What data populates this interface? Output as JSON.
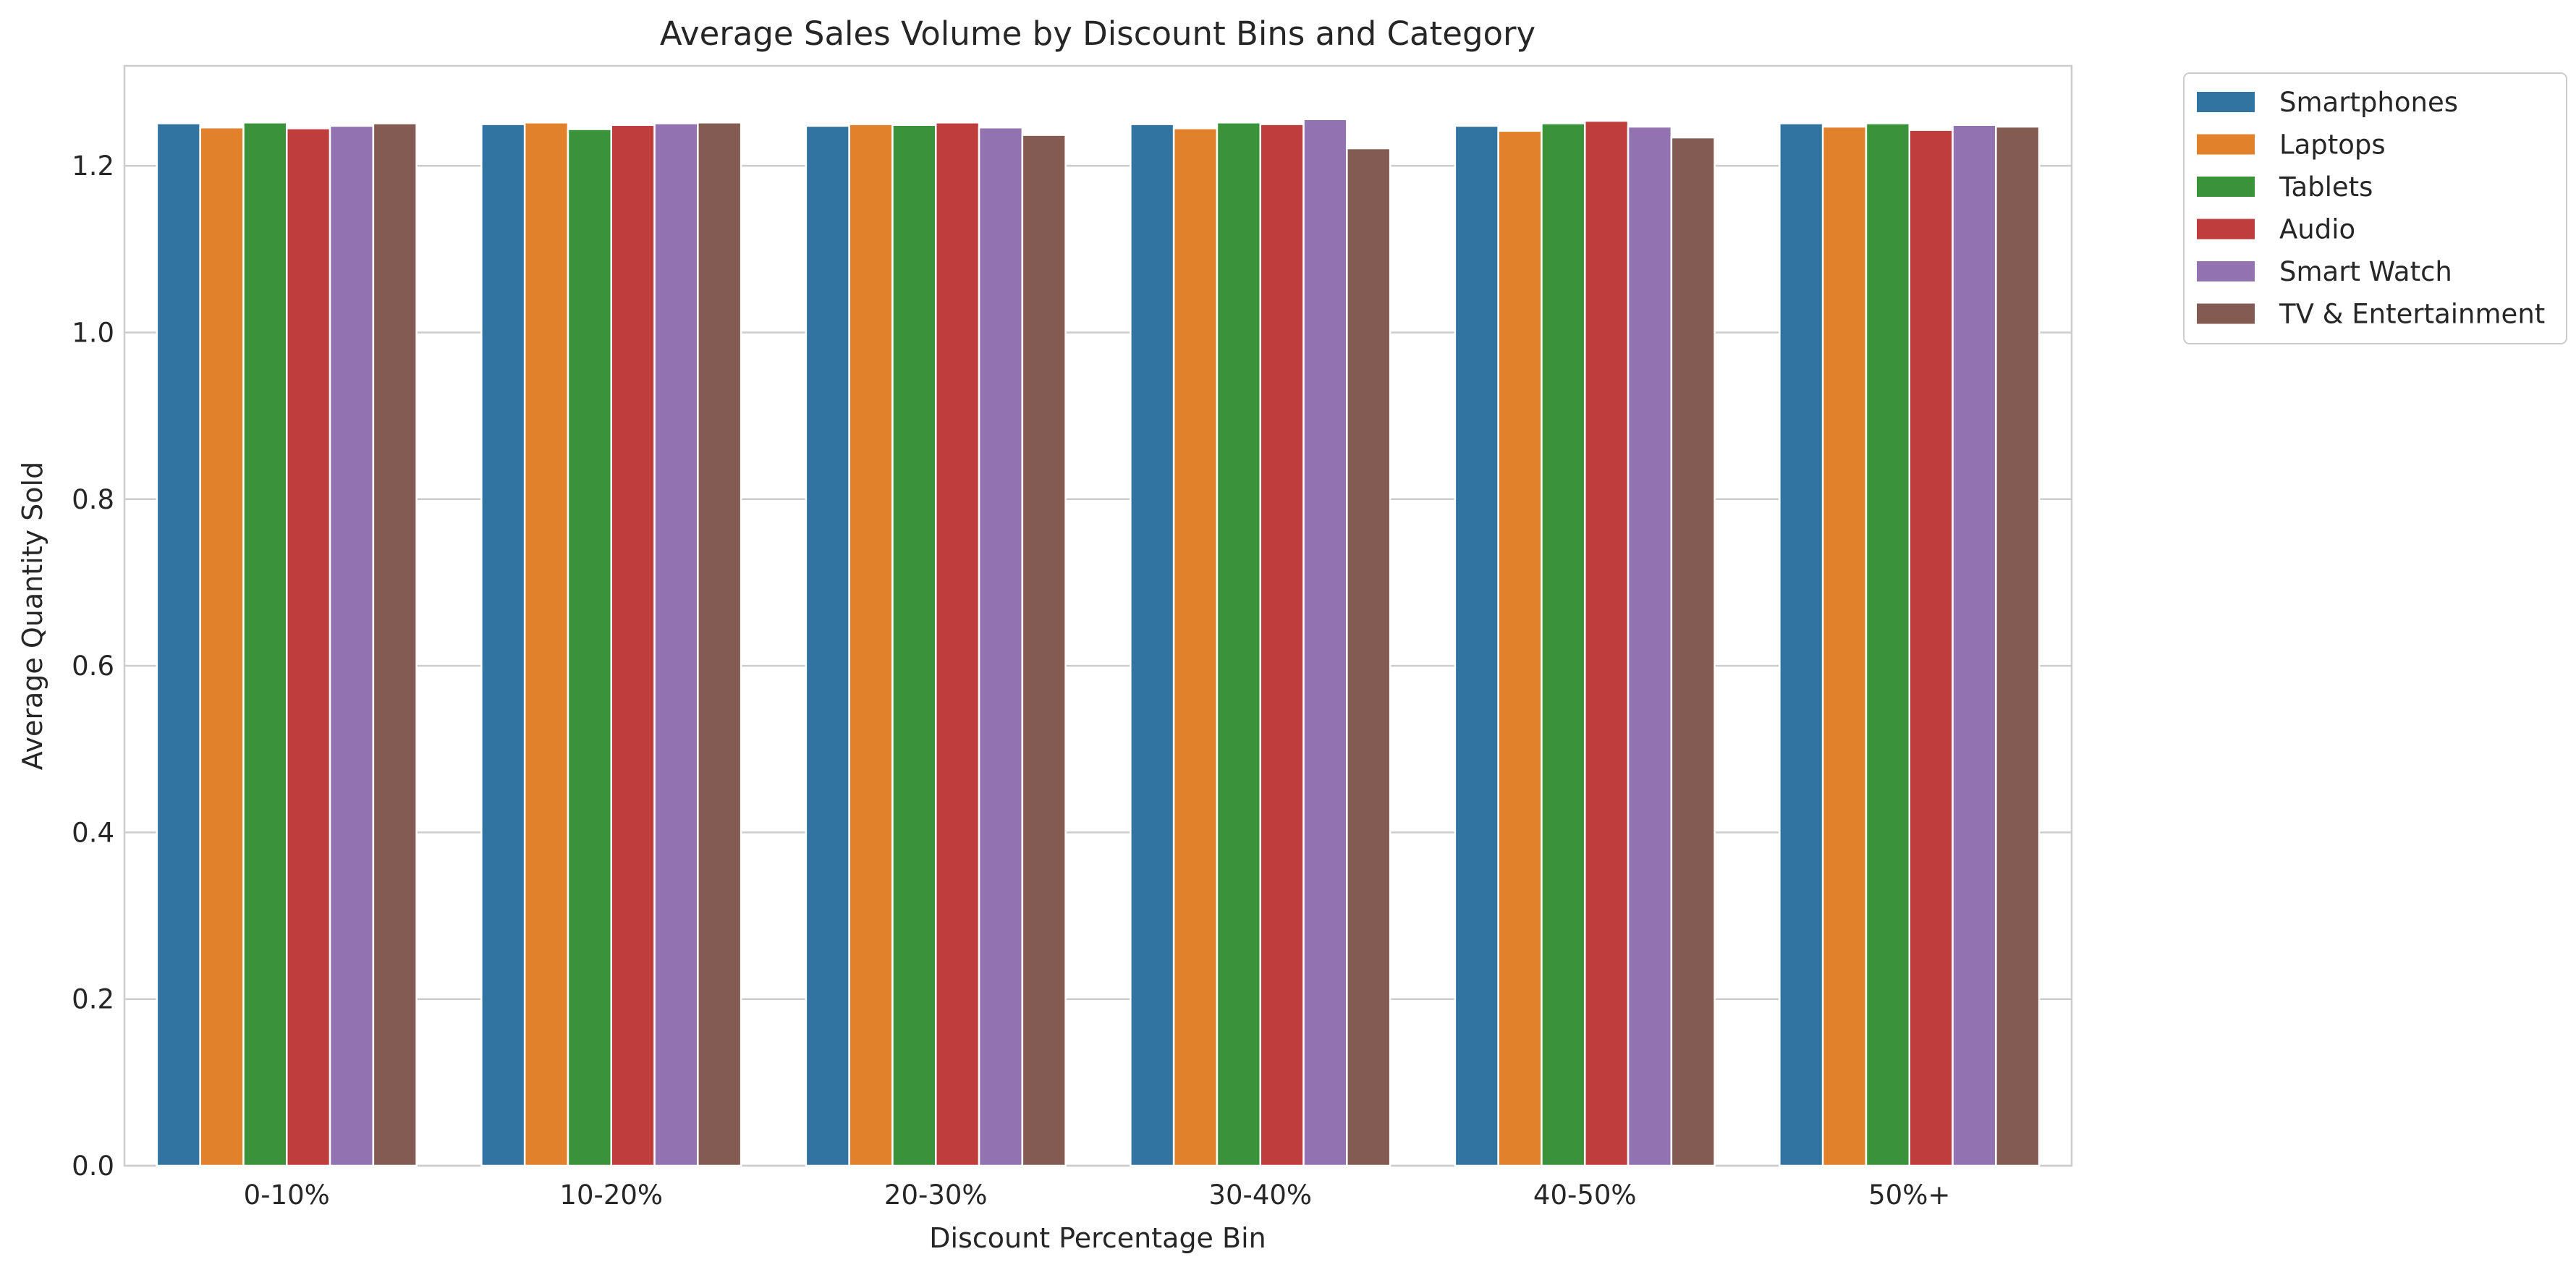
{
  "chart_data": {
    "type": "bar",
    "title": "Average Sales Volume by Discount Bins and Category",
    "xlabel": "Discount Percentage Bin",
    "ylabel": "Average Quantity Sold",
    "categories": [
      "0-10%",
      "10-20%",
      "20-30%",
      "30-40%",
      "40-50%",
      "50%+"
    ],
    "ylim": [
      0,
      1.32
    ],
    "yticks": [
      "0.0",
      "0.2",
      "0.4",
      "0.6",
      "0.8",
      "1.0",
      "1.2"
    ],
    "grid": true,
    "legend_position": "outside-top-right",
    "series": [
      {
        "name": "Smartphones",
        "color": "#3274a1",
        "values": [
          1.251,
          1.25,
          1.248,
          1.25,
          1.248,
          1.251
        ]
      },
      {
        "name": "Laptops",
        "color": "#e1812c",
        "values": [
          1.246,
          1.252,
          1.25,
          1.245,
          1.242,
          1.247
        ]
      },
      {
        "name": "Tablets",
        "color": "#3a923a",
        "values": [
          1.252,
          1.244,
          1.249,
          1.252,
          1.251,
          1.251
        ]
      },
      {
        "name": "Audio",
        "color": "#c03d3e",
        "values": [
          1.245,
          1.249,
          1.252,
          1.25,
          1.254,
          1.243
        ]
      },
      {
        "name": "Smart Watch",
        "color": "#9372b2",
        "values": [
          1.248,
          1.251,
          1.246,
          1.256,
          1.247,
          1.249
        ]
      },
      {
        "name": "TV & Entertainment",
        "color": "#845b53",
        "values": [
          1.251,
          1.252,
          1.237,
          1.221,
          1.234,
          1.247
        ]
      }
    ]
  }
}
